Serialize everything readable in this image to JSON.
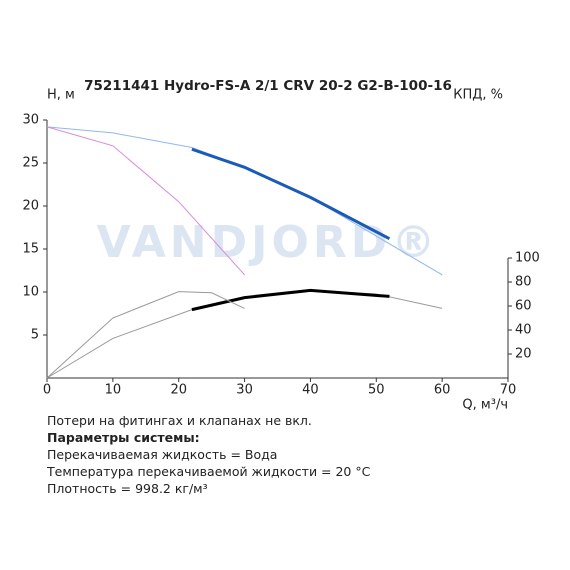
{
  "chart_data": {
    "type": "line",
    "title": "75211441 Hydro-FS-A 2/1 CRV 20-2 G2-B-100-16",
    "ylabel": "Н, м",
    "y2label": "КПД, %",
    "xlabel": "Q, м³/ч",
    "watermark": "VANDJORD®",
    "xlim": [
      0,
      70
    ],
    "xticks": [
      0,
      10,
      20,
      30,
      40,
      50,
      60,
      70
    ],
    "ylim": [
      0,
      30
    ],
    "yticks": [
      5,
      10,
      15,
      20,
      25,
      30
    ],
    "y2lim": [
      0,
      215
    ],
    "y2ticks": [
      20,
      40,
      60,
      80,
      100
    ],
    "series": [
      {
        "color": "#8fb8e8",
        "width": 1,
        "x": [
          0,
          10,
          22,
          30,
          40,
          50,
          60
        ],
        "values": [
          29.2,
          28.5,
          26.8,
          24.5,
          21,
          16.5,
          12
        ]
      },
      {
        "color": "#1a5bb8",
        "width": 3,
        "x": [
          22,
          30,
          40,
          52
        ],
        "values": [
          26.6,
          24.5,
          21,
          16.2
        ]
      },
      {
        "color": "#d98ad9",
        "width": 1,
        "x": [
          0,
          10,
          20,
          30
        ],
        "values": [
          29.2,
          27,
          20.5,
          12
        ]
      },
      {
        "color": "#999999",
        "width": 1,
        "axis": "y2",
        "x": [
          0,
          10,
          22,
          30,
          40,
          50,
          60
        ],
        "values": [
          0,
          33,
          57,
          67,
          73,
          70,
          58
        ]
      },
      {
        "color": "#000000",
        "width": 3,
        "axis": "y2",
        "x": [
          22,
          30,
          40,
          52
        ],
        "values": [
          57,
          67,
          73,
          68
        ]
      },
      {
        "color": "#999999",
        "width": 1,
        "axis": "y2",
        "x": [
          0,
          10,
          20,
          25,
          30
        ],
        "values": [
          0,
          50,
          72,
          71,
          58
        ]
      }
    ]
  },
  "notes": [
    "Потери на фитингах и клапанах не вкл.",
    "Параметры системы:",
    "Перекачиваемая жидкость = Вода",
    "Температура перекачиваемой жидкости = 20 °C",
    "Плотность = 998.2 кг/м³"
  ]
}
